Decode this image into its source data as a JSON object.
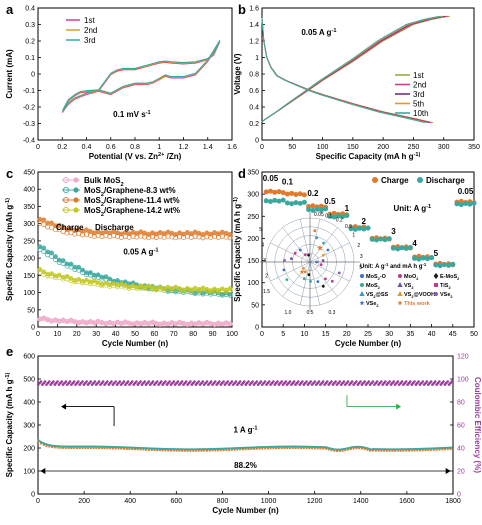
{
  "panel_letters": [
    "a",
    "b",
    "c",
    "d",
    "e"
  ],
  "chart_data": [
    {
      "id": "a",
      "type": "line",
      "xlabel": "Potential (V vs. Zn2+/Zn)",
      "ylabel": "Current (mA)",
      "xlim": [
        0.0,
        1.6
      ],
      "ylim": [
        -0.4,
        0.4
      ],
      "xticks": [
        0.0,
        0.2,
        0.4,
        0.6,
        0.8,
        1.0,
        1.2,
        1.4,
        1.6
      ],
      "yticks": [
        -0.4,
        -0.3,
        -0.2,
        -0.1,
        0.0,
        0.1,
        0.2,
        0.3,
        0.4
      ],
      "annotation": "0.1 mV s-1",
      "legend": [
        "1st",
        "2nd",
        "3rd"
      ],
      "colors": [
        "#d23c8c",
        "#e09a2c",
        "#3aa89e"
      ],
      "legend_position": "top-left",
      "curve": {
        "x": [
          0.2,
          0.25,
          0.3,
          0.35,
          0.4,
          0.45,
          0.5,
          0.55,
          0.6,
          0.65,
          0.7,
          0.8,
          0.9,
          1.0,
          1.05,
          1.1,
          1.2,
          1.3,
          1.4,
          1.45,
          1.5,
          1.5,
          1.45,
          1.4,
          1.3,
          1.2,
          1.1,
          1.05,
          1.0,
          0.95,
          0.9,
          0.8,
          0.7,
          0.6,
          0.5,
          0.4,
          0.35,
          0.3,
          0.25,
          0.22,
          0.2
        ],
        "y": [
          -0.23,
          -0.18,
          -0.15,
          -0.135,
          -0.12,
          -0.11,
          -0.1,
          -0.05,
          0.0,
          0.02,
          0.03,
          0.03,
          0.05,
          0.07,
          0.075,
          0.07,
          0.065,
          0.07,
          0.09,
          0.12,
          0.2,
          0.2,
          0.14,
          0.08,
          0.0,
          -0.02,
          -0.02,
          -0.01,
          -0.03,
          -0.05,
          -0.06,
          -0.06,
          -0.08,
          -0.12,
          -0.1,
          -0.105,
          -0.11,
          -0.13,
          -0.16,
          -0.2,
          -0.23
        ]
      }
    },
    {
      "id": "b",
      "type": "line",
      "xlabel": "Specific Capacity (mA h g-1)",
      "ylabel": "Voltage (V)",
      "xlim": [
        0,
        350
      ],
      "ylim": [
        0.0,
        1.6
      ],
      "xticks": [
        0,
        50,
        100,
        150,
        200,
        250,
        300,
        350
      ],
      "yticks": [
        0.0,
        0.2,
        0.4,
        0.6,
        0.8,
        1.0,
        1.2,
        1.4,
        1.6
      ],
      "annotation": "0.05 A g-1",
      "legend": [
        "1st",
        "2nd",
        "3rd",
        "5th",
        "10th"
      ],
      "colors": [
        "#9bab3c",
        "#d23c8c",
        "#7a2f86",
        "#e09a2c",
        "#3aa89e"
      ],
      "legend_position": "bottom-right",
      "charge": {
        "x": [
          0,
          5,
          20,
          50,
          80,
          100,
          150,
          200,
          250,
          280,
          300,
          310
        ],
        "y": [
          0.22,
          0.25,
          0.32,
          0.47,
          0.62,
          0.72,
          0.95,
          1.2,
          1.4,
          1.46,
          1.49,
          1.5
        ]
      },
      "discharge": {
        "x": [
          0,
          3,
          8,
          15,
          25,
          40,
          60,
          80,
          100,
          150,
          200,
          250,
          280
        ],
        "y": [
          1.48,
          1.2,
          1.0,
          0.88,
          0.78,
          0.72,
          0.66,
          0.6,
          0.55,
          0.44,
          0.34,
          0.26,
          0.21
        ]
      }
    },
    {
      "id": "c",
      "type": "scatter",
      "xlabel": "Cycle Number (n)",
      "ylabel": "Specific Capacity (mAh g-1)",
      "xlim": [
        0,
        100
      ],
      "ylim": [
        0,
        450
      ],
      "xticks": [
        0,
        10,
        20,
        30,
        40,
        50,
        60,
        70,
        80,
        90,
        100
      ],
      "yticks": [
        0,
        50,
        100,
        150,
        200,
        250,
        300,
        350,
        400,
        450
      ],
      "annotations": [
        "Charge",
        "Discharge",
        "0.05 A g-1"
      ],
      "legend_position": "top-right",
      "series": [
        {
          "name": "Bulk MoS2",
          "color": "#f0a8c8",
          "initial": 25,
          "final": 10,
          "decay": 0.05
        },
        {
          "name": "MoS2/Graphene-8.3 wt%",
          "color": "#3aa89e",
          "initial": 240,
          "final": 90,
          "decay": 0.03
        },
        {
          "name": "MoS2/Graphene-11.4 wt%",
          "color": "#e07a2c",
          "initial": 320,
          "final": 272,
          "decay": 0.08
        },
        {
          "name": "MoS2/Graphene-14.2 wt%",
          "color": "#c3c825",
          "initial": 165,
          "final": 105,
          "decay": 0.03
        }
      ]
    },
    {
      "id": "d",
      "type": "scatter",
      "xlabel": "Cycle Number (n)",
      "ylabel": "Specific Capacity (mA h g-1)",
      "xlim": [
        0,
        50
      ],
      "ylim": [
        0,
        350
      ],
      "xticks": [
        0,
        5,
        10,
        15,
        20,
        25,
        30,
        35,
        40,
        45,
        50
      ],
      "yticks": [
        0,
        50,
        100,
        150,
        200,
        250,
        300,
        350
      ],
      "legend": [
        "Charge",
        "Discharge"
      ],
      "colors": [
        "#e07a2c",
        "#3aa89e"
      ],
      "unit_label": "Unit: A g-1",
      "rate_labels": [
        "0.05",
        "0.1",
        "0.2",
        "0.5",
        "1",
        "2",
        "3",
        "4",
        "5",
        "0.05"
      ],
      "rate_label_positions": [
        [
          2,
          330
        ],
        [
          6,
          322
        ],
        [
          12,
          296
        ],
        [
          16,
          278
        ],
        [
          20,
          262
        ],
        [
          24,
          233
        ],
        [
          31,
          210
        ],
        [
          36,
          183
        ],
        [
          41,
          160
        ],
        [
          48,
          300
        ]
      ],
      "steps": [
        {
          "start": 1,
          "end": 5,
          "charge": 305,
          "discharge": 285
        },
        {
          "start": 6,
          "end": 10,
          "charge": 300,
          "discharge": 280
        },
        {
          "start": 11,
          "end": 15,
          "charge": 272,
          "discharge": 265
        },
        {
          "start": 16,
          "end": 20,
          "charge": 255,
          "discharge": 250
        },
        {
          "start": 21,
          "end": 25,
          "charge": 225,
          "discharge": 222
        },
        {
          "start": 26,
          "end": 30,
          "charge": 200,
          "discharge": 198
        },
        {
          "start": 31,
          "end": 35,
          "charge": 180,
          "discharge": 178
        },
        {
          "start": 36,
          "end": 40,
          "charge": 158,
          "discharge": 155
        },
        {
          "start": 41,
          "end": 45,
          "charge": 142,
          "discharge": 140
        },
        {
          "start": 46,
          "end": 50,
          "charge": 282,
          "discharge": 278
        }
      ],
      "inset": {
        "title": "Unit: A g-1 and mA h g-1",
        "rings": [
          100,
          150,
          200,
          250,
          300
        ],
        "spokes": [
          "0.05",
          "0.1",
          "0.2",
          "0.5",
          "1",
          "2",
          "3",
          "5"
        ],
        "ticks_left": [
          "5",
          "4",
          "3",
          "2",
          "1.5"
        ],
        "ticks_bottom": [
          "1.0",
          "0.5",
          "0.3"
        ],
        "legend": [
          {
            "name": "MoS2-O",
            "color": "#3a6fd0",
            "marker": "circle"
          },
          {
            "name": "MoO2",
            "color": "#c23a8c",
            "marker": "circle"
          },
          {
            "name": "E-MoS2",
            "color": "#1a1a1a",
            "marker": "diamond"
          },
          {
            "name": "MoS2",
            "color": "#3aa89e",
            "marker": "circle"
          },
          {
            "name": "VS2",
            "color": "#6f4fb0",
            "marker": "triangle"
          },
          {
            "name": "TiS2",
            "color": "#c23a8c",
            "marker": "square"
          },
          {
            "name": "VS2@SS",
            "color": "#2a9ad0",
            "marker": "triangle"
          },
          {
            "name": "VS2@VOOH",
            "color": "#e09a2c",
            "marker": "triangle"
          },
          {
            "name": "VSe2",
            "color": "#8a5ac0",
            "marker": "circle"
          },
          {
            "name": "VSe2",
            "color": "#3a6fd0",
            "marker": "star"
          },
          {
            "name": "This work",
            "color": "#e07a2c",
            "marker": "star"
          }
        ]
      }
    },
    {
      "id": "e",
      "type": "scatter",
      "xlabel": "Cycle Number (n)",
      "ylabel": "Specific Capacity (mA h g-1)",
      "y2label": "Coulombic Efficiency (%)",
      "xlim": [
        0,
        1800
      ],
      "ylim": [
        0,
        600
      ],
      "y2lim": [
        0,
        120
      ],
      "xticks": [
        0,
        200,
        400,
        600,
        800,
        1000,
        1200,
        1400,
        1600,
        1800
      ],
      "yticks": [
        0,
        100,
        200,
        300,
        400,
        500,
        600
      ],
      "y2ticks": [
        0,
        20,
        40,
        60,
        80,
        100,
        120
      ],
      "annotations": [
        "1 A g-1",
        "88.2%"
      ],
      "capacity_color": "#3aa89e",
      "capacity_overlay_color": "#e07a2c",
      "ce_color": "#9a3c9a",
      "capacity": {
        "initial": 235,
        "plateau": 200,
        "final": 205
      },
      "ce": {
        "mean": 96
      }
    }
  ]
}
